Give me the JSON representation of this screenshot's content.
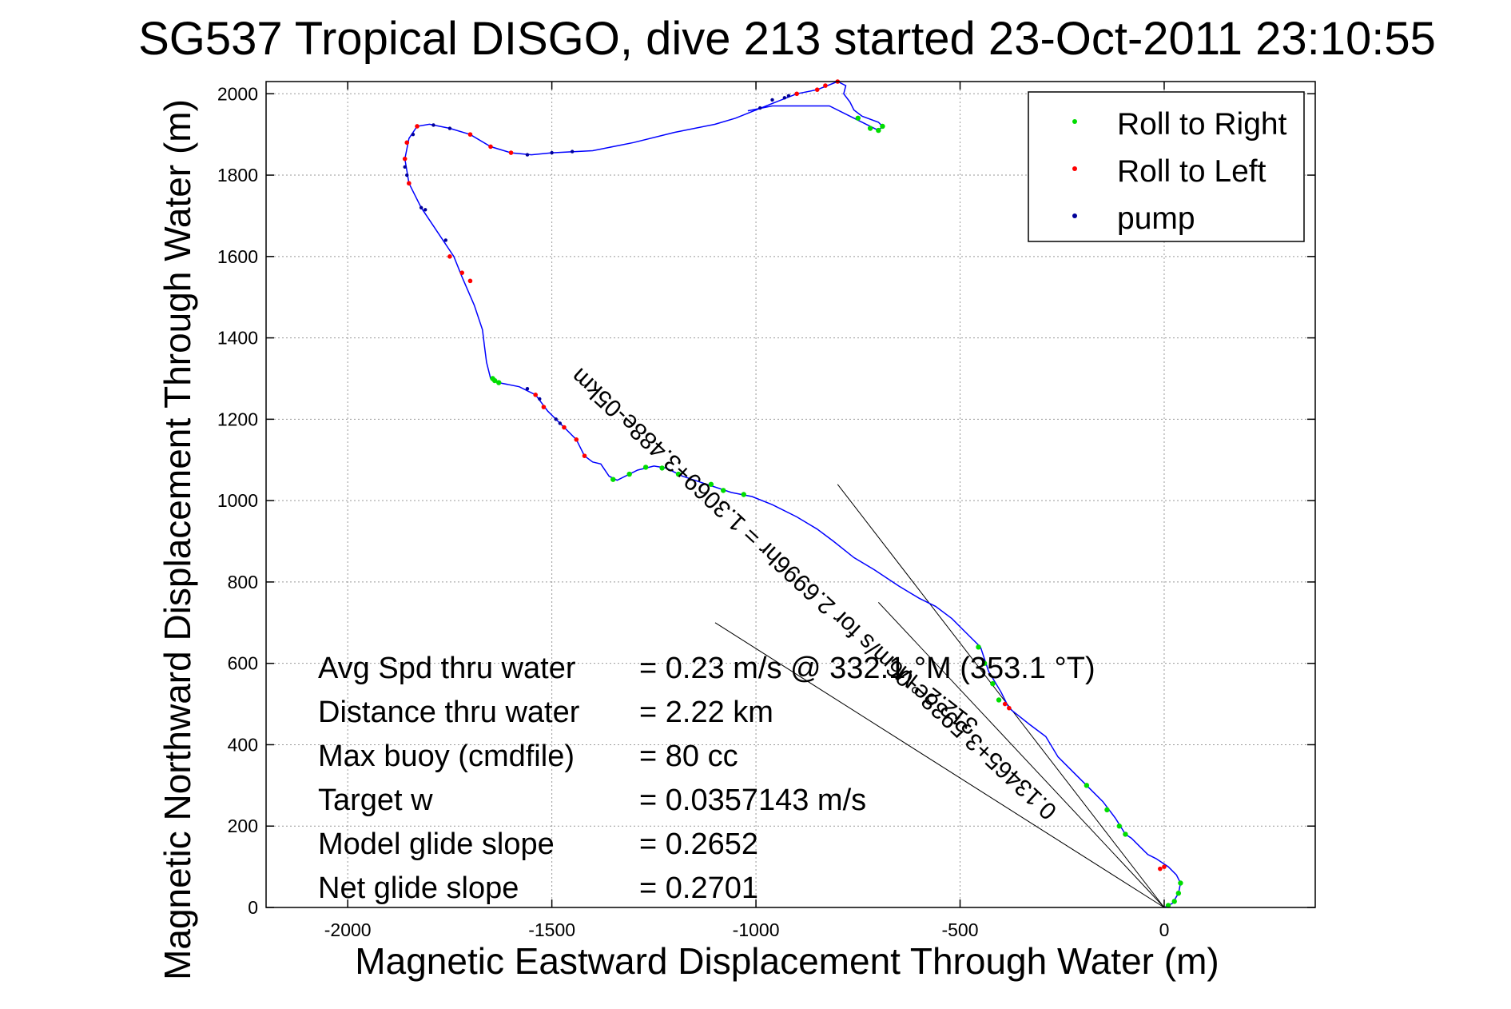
{
  "chart_data": {
    "type": "scatter",
    "title": "SG537 Tropical DISGO, dive 213 started 23-Oct-2011 23:10:55",
    "xlabel": "Magnetic Eastward Displacement Through Water (m)",
    "ylabel": "Magnetic Northward Displacement Through Water (m)",
    "xlim": [
      -2200,
      370
    ],
    "ylim": [
      0,
      2030
    ],
    "xticks": [
      -2000,
      -1500,
      -1000,
      -500,
      0
    ],
    "yticks": [
      0,
      200,
      400,
      600,
      800,
      1000,
      1200,
      1400,
      1600,
      1800,
      2000
    ],
    "grid": true,
    "legend_position": "top-right",
    "legend": [
      {
        "label": "Roll to Right",
        "color": "#00dd00"
      },
      {
        "label": "Roll to Left",
        "color": "#ff0000"
      },
      {
        "label": "pump",
        "color": "#000099"
      }
    ],
    "track_color": "#0000ff",
    "track": [
      [
        0,
        0
      ],
      [
        20,
        10
      ],
      [
        35,
        35
      ],
      [
        40,
        60
      ],
      [
        30,
        80
      ],
      [
        10,
        100
      ],
      [
        -20,
        120
      ],
      [
        -40,
        130
      ],
      [
        -60,
        150
      ],
      [
        -80,
        170
      ],
      [
        -95,
        180
      ],
      [
        -120,
        220
      ],
      [
        -150,
        260
      ],
      [
        -200,
        310
      ],
      [
        -260,
        370
      ],
      [
        -290,
        420
      ],
      [
        -330,
        450
      ],
      [
        -380,
        490
      ],
      [
        -400,
        530
      ],
      [
        -430,
        580
      ],
      [
        -450,
        640
      ],
      [
        -470,
        660
      ],
      [
        -490,
        680
      ],
      [
        -520,
        710
      ],
      [
        -560,
        740
      ],
      [
        -600,
        760
      ],
      [
        -650,
        790
      ],
      [
        -710,
        830
      ],
      [
        -760,
        860
      ],
      [
        -810,
        900
      ],
      [
        -850,
        930
      ],
      [
        -900,
        960
      ],
      [
        -960,
        990
      ],
      [
        -1010,
        1010
      ],
      [
        -1060,
        1020
      ],
      [
        -1120,
        1040
      ],
      [
        -1180,
        1060
      ],
      [
        -1220,
        1080
      ],
      [
        -1250,
        1085
      ],
      [
        -1290,
        1075
      ],
      [
        -1340,
        1050
      ],
      [
        -1360,
        1060
      ],
      [
        -1380,
        1090
      ],
      [
        -1400,
        1095
      ],
      [
        -1420,
        1110
      ],
      [
        -1440,
        1150
      ],
      [
        -1470,
        1180
      ],
      [
        -1510,
        1220
      ],
      [
        -1540,
        1260
      ],
      [
        -1580,
        1280
      ],
      [
        -1630,
        1290
      ],
      [
        -1650,
        1300
      ],
      [
        -1660,
        1340
      ],
      [
        -1665,
        1380
      ],
      [
        -1670,
        1420
      ],
      [
        -1690,
        1480
      ],
      [
        -1720,
        1550
      ],
      [
        -1740,
        1600
      ],
      [
        -1780,
        1660
      ],
      [
        -1820,
        1720
      ],
      [
        -1850,
        1780
      ],
      [
        -1860,
        1840
      ],
      [
        -1850,
        1890
      ],
      [
        -1830,
        1920
      ],
      [
        -1800,
        1925
      ],
      [
        -1750,
        1915
      ],
      [
        -1700,
        1900
      ],
      [
        -1650,
        1870
      ],
      [
        -1600,
        1855
      ],
      [
        -1550,
        1850
      ],
      [
        -1500,
        1855
      ],
      [
        -1400,
        1860
      ],
      [
        -1300,
        1880
      ],
      [
        -1200,
        1905
      ],
      [
        -1100,
        1925
      ],
      [
        -1050,
        1940
      ],
      [
        -1000,
        1960
      ],
      [
        -950,
        1980
      ],
      [
        -900,
        2000
      ],
      [
        -850,
        2010
      ],
      [
        -800,
        2030
      ],
      [
        -780,
        2020
      ],
      [
        -785,
        2000
      ],
      [
        -770,
        1980
      ],
      [
        -760,
        1960
      ],
      [
        -740,
        1945
      ],
      [
        -700,
        1930
      ],
      [
        -690,
        1920
      ],
      [
        -700,
        1910
      ],
      [
        -760,
        1940
      ],
      [
        -820,
        1970
      ],
      [
        -960,
        1970
      ],
      [
        -1020,
        1958
      ]
    ],
    "roll_right": [
      [
        10,
        5
      ],
      [
        25,
        15
      ],
      [
        35,
        35
      ],
      [
        40,
        60
      ],
      [
        -95,
        180
      ],
      [
        -110,
        200
      ],
      [
        -140,
        240
      ],
      [
        -190,
        300
      ],
      [
        -405,
        510
      ],
      [
        -420,
        550
      ],
      [
        -440,
        600
      ],
      [
        -455,
        640
      ],
      [
        -1030,
        1015
      ],
      [
        -1080,
        1025
      ],
      [
        -1110,
        1040
      ],
      [
        -1190,
        1065
      ],
      [
        -1230,
        1080
      ],
      [
        -1270,
        1082
      ],
      [
        -1310,
        1065
      ],
      [
        -1350,
        1052
      ],
      [
        -1630,
        1290
      ],
      [
        -1645,
        1300
      ],
      [
        -1640,
        1295
      ],
      [
        -690,
        1920
      ],
      [
        -700,
        1910
      ],
      [
        -720,
        1915
      ],
      [
        -750,
        1940
      ]
    ],
    "roll_left": [
      [
        0,
        100
      ],
      [
        -10,
        95
      ],
      [
        -380,
        490
      ],
      [
        -390,
        500
      ],
      [
        -1420,
        1110
      ],
      [
        -1440,
        1150
      ],
      [
        -1470,
        1180
      ],
      [
        -1520,
        1230
      ],
      [
        -1540,
        1260
      ],
      [
        -1700,
        1540
      ],
      [
        -1720,
        1560
      ],
      [
        -1750,
        1600
      ],
      [
        -1850,
        1780
      ],
      [
        -1860,
        1840
      ],
      [
        -1855,
        1880
      ],
      [
        -1830,
        1920
      ],
      [
        -1700,
        1900
      ],
      [
        -1650,
        1870
      ],
      [
        -1600,
        1855
      ],
      [
        -850,
        2010
      ],
      [
        -800,
        2030
      ],
      [
        -830,
        2020
      ],
      [
        -900,
        2000
      ]
    ],
    "pump": [
      [
        -1490,
        1200
      ],
      [
        -1480,
        1190
      ],
      [
        -1530,
        1250
      ],
      [
        -1560,
        1275
      ],
      [
        -1820,
        1720
      ],
      [
        -1810,
        1715
      ],
      [
        -1760,
        1640
      ],
      [
        -1855,
        1800
      ],
      [
        -1860,
        1820
      ],
      [
        -1840,
        1900
      ],
      [
        -1790,
        1923
      ],
      [
        -1750,
        1915
      ],
      [
        -1500,
        1855
      ],
      [
        -1450,
        1858
      ],
      [
        -1560,
        1850
      ],
      [
        -960,
        1985
      ],
      [
        -930,
        1990
      ],
      [
        -920,
        1995
      ],
      [
        -990,
        1965
      ]
    ],
    "annotations": [
      {
        "text": "0.13465+3.5938e-06m/s for 2.6996hr = 1.3069+3.488e-05km",
        "from": [
          0,
          0
        ],
        "to": [
          -1690,
          1570
        ]
      },
      {
        "text": "312.2 °M",
        "from": [
          -60,
          150
        ],
        "to": [
          -1030,
          900
        ]
      }
    ],
    "reference_lines": [
      {
        "from": [
          0,
          0
        ],
        "to": [
          -800,
          1040
        ]
      },
      {
        "from": [
          0,
          0
        ],
        "to": [
          -1100,
          700
        ]
      },
      {
        "from": [
          0,
          0
        ],
        "to": [
          -700,
          750
        ]
      }
    ],
    "stats": [
      {
        "label": "Avg Spd thru water",
        "value": "=  0.23 m/s @ 332.1 °M (353.1 °T)"
      },
      {
        "label": "Distance thru water",
        "value": "=  2.22 km"
      },
      {
        "label": "Max buoy (cmdfile)",
        "value": "= 80 cc"
      },
      {
        "label": "Target w",
        "value": "= 0.0357143 m/s"
      },
      {
        "label": "Model glide slope",
        "value": "= 0.2652"
      },
      {
        "label": "Net glide slope",
        "value": "= 0.2701"
      }
    ]
  }
}
